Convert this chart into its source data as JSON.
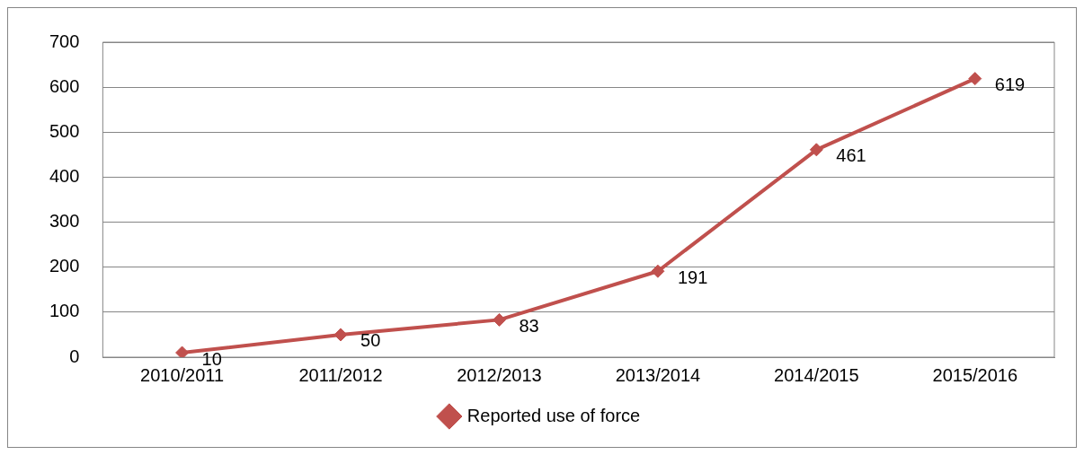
{
  "chart_data": {
    "type": "line",
    "categories": [
      "2010/2011",
      "2011/2012",
      "2012/2013",
      "2013/2014",
      "2014/2015",
      "2015/2016"
    ],
    "series": [
      {
        "name": "Reported use of force",
        "color": "#c0504d",
        "values": [
          10,
          50,
          83,
          191,
          461,
          619
        ]
      }
    ],
    "ylim": [
      0,
      700
    ],
    "yticks": [
      0,
      100,
      200,
      300,
      400,
      500,
      600,
      700
    ],
    "grid": "y",
    "legend": "bottom",
    "marker": "diamond",
    "data_labels": true
  }
}
